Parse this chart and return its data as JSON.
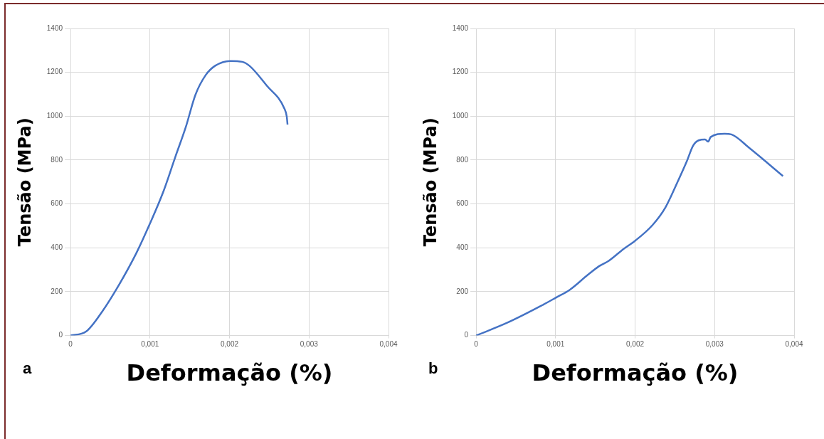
{
  "chart_data": [
    {
      "type": "line",
      "xlabel": "Deformação (%)",
      "ylabel": "Tensão (MPa)",
      "annotations": [
        "a"
      ],
      "grid": true,
      "xlim": [
        0,
        0.004
      ],
      "ylim": [
        0,
        1400
      ],
      "xticks": [
        0,
        {
          "value": 0.001,
          "label": "0,001"
        },
        {
          "value": 0.002,
          "label": "0,002"
        },
        {
          "value": 0.003,
          "label": "0,003"
        },
        {
          "value": 0.004,
          "label": "0,004"
        }
      ],
      "yticks": [
        0,
        200,
        400,
        600,
        800,
        1000,
        1200,
        1400
      ],
      "x": [
        0,
        0.000195,
        0.0004,
        0.00061,
        0.00083,
        0.001,
        0.00117,
        0.00132,
        0.00145,
        0.00157,
        0.0017,
        0.00182,
        0.00201,
        0.00216,
        0.00225,
        0.00247,
        0.00269,
        0.00272,
        0.00273
      ],
      "series": [
        {
          "color": "#4472c4",
          "values": [
            0,
            18,
            110,
            231,
            377,
            511,
            658,
            816,
            950,
            1096,
            1187,
            1230,
            1252,
            1248,
            1230,
            1139,
            1035,
            998,
            962
          ]
        }
      ]
    },
    {
      "type": "line",
      "xlabel": "Deformação (%)",
      "ylabel": "Tensão (MPa)",
      "annotations": [
        "b"
      ],
      "grid": true,
      "xlim": [
        0,
        0.004
      ],
      "ylim": [
        0,
        1400
      ],
      "xticks": [
        0,
        {
          "value": 0.001,
          "label": "0,001"
        },
        {
          "value": 0.002,
          "label": "0,002"
        },
        {
          "value": 0.003,
          "label": "0,003"
        },
        {
          "value": 0.004,
          "label": "0,004"
        }
      ],
      "yticks": [
        0,
        200,
        400,
        600,
        800,
        1000,
        1200,
        1400
      ],
      "x": [
        0,
        0.00039,
        0.00082,
        0.001,
        0.00118,
        0.0014,
        0.00155,
        0.00167,
        0.00186,
        0.002,
        0.00222,
        0.00238,
        0.00253,
        0.00265,
        0.00273,
        0.0028,
        0.00288,
        0.00292,
        0.00295,
        0.00313,
        0.00321,
        0.00344,
        0.00368,
        0.00386
      ],
      "series": [
        {
          "color": "#4472c4",
          "values": [
            0,
            58,
            136,
            172,
            209,
            275,
            317,
            341,
            396,
            432,
            504,
            583,
            697,
            794,
            866,
            890,
            894,
            884,
            905,
            920,
            917,
            854,
            782,
            727
          ]
        }
      ]
    }
  ]
}
